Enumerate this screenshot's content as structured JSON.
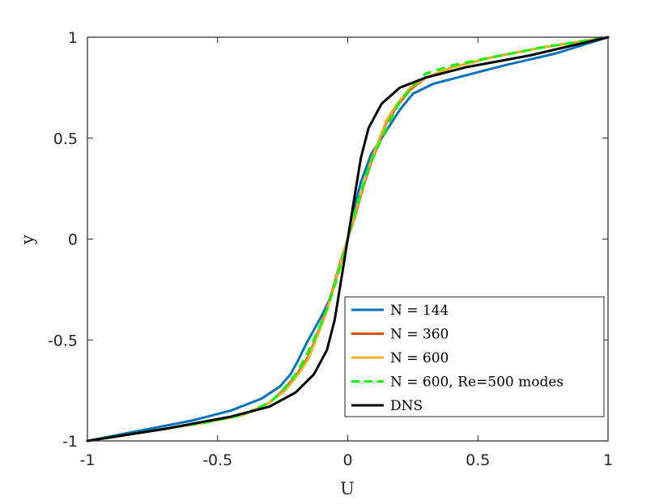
{
  "chart_data": {
    "type": "line",
    "xlabel": "U",
    "ylabel": "y",
    "xlim": [
      -1,
      1
    ],
    "ylim": [
      -1,
      1
    ],
    "xticks": [
      "-1",
      "-0.5",
      "0",
      "0.5",
      "1"
    ],
    "yticks": [
      "-1",
      "-0.5",
      "0",
      "0.5",
      "1"
    ],
    "grid": false,
    "legend_position": "lower-right",
    "series": [
      {
        "name": "N = 144",
        "color": "#0072BD",
        "style": "solid",
        "x": [
          -1,
          -0.8,
          -0.6,
          -0.45,
          -0.33,
          -0.26,
          -0.22,
          -0.19,
          -0.16,
          -0.13,
          -0.1,
          -0.07,
          -0.04,
          0,
          0.03,
          0.05,
          0.07,
          0.09,
          0.12,
          0.16,
          0.2,
          0.25,
          0.33,
          0.45,
          0.6,
          0.8,
          1
        ],
        "y": [
          -1,
          -0.95,
          -0.9,
          -0.85,
          -0.79,
          -0.73,
          -0.67,
          -0.6,
          -0.52,
          -0.45,
          -0.38,
          -0.3,
          -0.18,
          0,
          0.18,
          0.28,
          0.35,
          0.42,
          0.48,
          0.56,
          0.64,
          0.72,
          0.77,
          0.81,
          0.86,
          0.92,
          1
        ]
      },
      {
        "name": "N = 360",
        "color": "#D95319",
        "style": "solid",
        "x": [
          -1,
          -0.75,
          -0.55,
          -0.4,
          -0.3,
          -0.24,
          -0.19,
          -0.15,
          -0.12,
          -0.09,
          -0.06,
          -0.03,
          0,
          0.03,
          0.06,
          0.09,
          0.12,
          0.15,
          0.19,
          0.24,
          0.3,
          0.4,
          0.55,
          0.75,
          1
        ],
        "y": [
          -1,
          -0.95,
          -0.91,
          -0.87,
          -0.81,
          -0.74,
          -0.66,
          -0.58,
          -0.48,
          -0.38,
          -0.26,
          -0.12,
          0,
          0.12,
          0.26,
          0.38,
          0.48,
          0.58,
          0.66,
          0.74,
          0.8,
          0.85,
          0.9,
          0.95,
          1
        ]
      },
      {
        "name": "N = 600",
        "color": "#EDB120",
        "style": "solid",
        "x": [
          -1,
          -0.75,
          -0.55,
          -0.4,
          -0.3,
          -0.24,
          -0.19,
          -0.15,
          -0.12,
          -0.09,
          -0.06,
          -0.03,
          0,
          0.03,
          0.06,
          0.09,
          0.12,
          0.15,
          0.19,
          0.24,
          0.3,
          0.4,
          0.55,
          0.75,
          1
        ],
        "y": [
          -1,
          -0.95,
          -0.91,
          -0.87,
          -0.81,
          -0.75,
          -0.67,
          -0.59,
          -0.49,
          -0.39,
          -0.27,
          -0.13,
          0,
          0.13,
          0.27,
          0.39,
          0.49,
          0.59,
          0.67,
          0.75,
          0.8,
          0.85,
          0.9,
          0.95,
          1
        ]
      },
      {
        "name": "N = 600, Re=500 modes",
        "color": "#00FF00",
        "style": "dashed",
        "x": [
          -1,
          -0.75,
          -0.55,
          -0.4,
          -0.3,
          -0.25,
          -0.2,
          -0.16,
          -0.12,
          -0.08,
          -0.05,
          -0.02,
          0,
          0.02,
          0.05,
          0.08,
          0.12,
          0.16,
          0.2,
          0.25,
          0.3,
          0.4,
          0.55,
          0.75,
          1
        ],
        "y": [
          -1,
          -0.95,
          -0.91,
          -0.87,
          -0.81,
          -0.75,
          -0.67,
          -0.58,
          -0.47,
          -0.35,
          -0.23,
          -0.1,
          0,
          0.1,
          0.23,
          0.35,
          0.47,
          0.58,
          0.68,
          0.76,
          0.82,
          0.86,
          0.9,
          0.95,
          1
        ]
      },
      {
        "name": "DNS",
        "color": "#000000",
        "style": "solid",
        "x": [
          -1,
          -0.7,
          -0.45,
          -0.3,
          -0.2,
          -0.13,
          -0.08,
          -0.05,
          -0.025,
          0,
          0.025,
          0.05,
          0.08,
          0.13,
          0.2,
          0.3,
          0.45,
          0.7,
          1
        ],
        "y": [
          -1,
          -0.94,
          -0.88,
          -0.83,
          -0.76,
          -0.67,
          -0.55,
          -0.4,
          -0.2,
          0,
          0.2,
          0.4,
          0.55,
          0.67,
          0.75,
          0.8,
          0.85,
          0.91,
          1
        ]
      }
    ]
  }
}
